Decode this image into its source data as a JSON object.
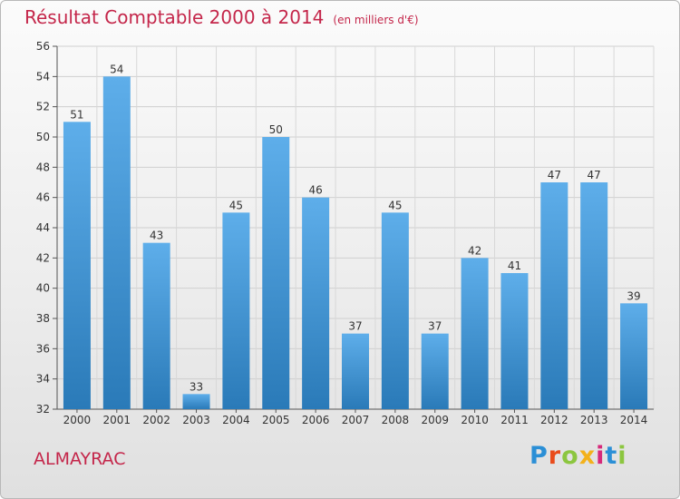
{
  "title": "Résultat Comptable 2000 à 2014",
  "subtitle": "(en milliers d'€)",
  "commune": "ALMAYRAC",
  "logo": {
    "letters": [
      "P",
      "r",
      "o",
      "x",
      "i",
      "t",
      "i"
    ],
    "colors": [
      "#2b8fd6",
      "#e94b1b",
      "#8cc63f",
      "#f3b11b",
      "#d6287a",
      "#2b8fd6",
      "#8cc63f"
    ]
  },
  "colors": {
    "bar_light": "#5eaeea",
    "bar_dark": "#2a7ab8",
    "title": "#c4264a"
  },
  "chart_data": {
    "type": "bar",
    "title": "Résultat Comptable 2000 à 2014",
    "subtitle": "(en milliers d'€)",
    "xlabel": "",
    "ylabel": "",
    "categories": [
      "2000",
      "2001",
      "2002",
      "2003",
      "2004",
      "2005",
      "2006",
      "2007",
      "2008",
      "2009",
      "2010",
      "2011",
      "2012",
      "2013",
      "2014"
    ],
    "values": [
      51,
      54,
      43,
      33,
      45,
      50,
      46,
      37,
      45,
      37,
      42,
      41,
      47,
      47,
      39
    ],
    "ylim": [
      32,
      56
    ],
    "yticks": [
      32,
      34,
      36,
      38,
      40,
      42,
      44,
      46,
      48,
      50,
      52,
      54,
      56
    ],
    "grid": true,
    "data_labels": true
  }
}
